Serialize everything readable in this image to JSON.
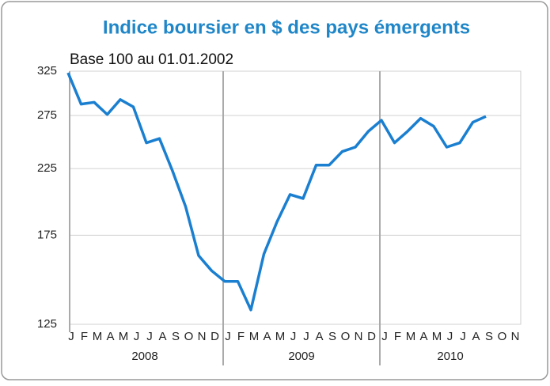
{
  "chart_data": {
    "type": "line",
    "title": "Indice boursier en $ des pays émergents",
    "subtitle": "Base 100 au 01.01.2002",
    "categories": [
      "J",
      "F",
      "M",
      "A",
      "M",
      "J",
      "J",
      "A",
      "S",
      "O",
      "N",
      "D",
      "J",
      "F",
      "M",
      "A",
      "M",
      "J",
      "J",
      "A",
      "S",
      "O",
      "N",
      "D",
      "J",
      "F",
      "M",
      "A",
      "M",
      "J",
      "J",
      "A",
      "S",
      "O",
      "N"
    ],
    "year_labels": [
      "2008",
      "2009",
      "2010"
    ],
    "series": [
      {
        "color": "#1a7fd0",
        "values": [
          323,
          287,
          289,
          276,
          292,
          284,
          248,
          252,
          223,
          195,
          162,
          153,
          147,
          147,
          132,
          163,
          184,
          204,
          201,
          228,
          228,
          240,
          244,
          259,
          270,
          248,
          259,
          272,
          264,
          244,
          248,
          268,
          274,
          null,
          null
        ]
      }
    ],
    "ylim": [
      125,
      325
    ],
    "yticks": [
      125,
      175,
      225,
      275,
      325
    ],
    "log_scale": true,
    "grid": true
  }
}
